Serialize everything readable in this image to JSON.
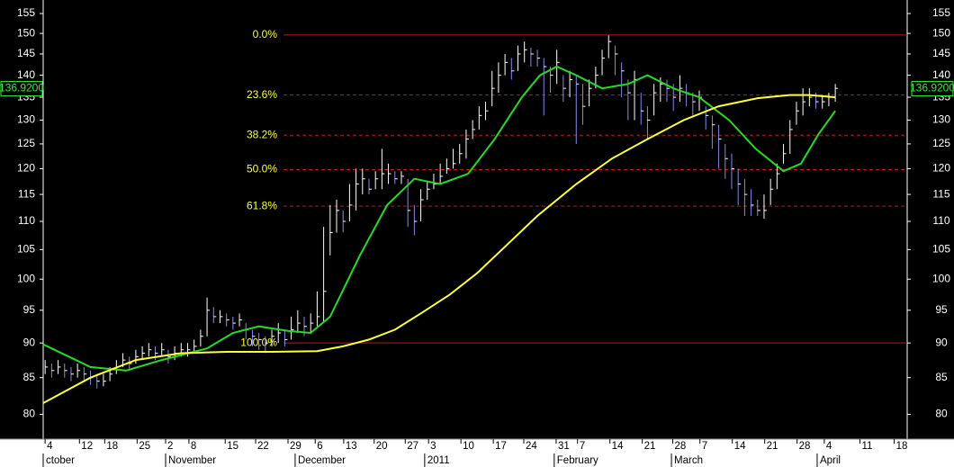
{
  "chart_data": {
    "type": "ohlc",
    "log_scale": true,
    "ylim": [
      76.8,
      158.5
    ],
    "yticks": [
      80,
      85,
      90,
      95,
      100,
      105,
      110,
      115,
      120,
      125,
      130,
      135,
      140,
      145,
      150,
      155
    ],
    "xlim": [
      -0.3,
      133.1
    ],
    "xticks": [
      {
        "value": 0,
        "label": "4"
      },
      {
        "value": 5.3,
        "label": "12"
      },
      {
        "value": 9.2,
        "label": "18"
      },
      {
        "value": 14.2,
        "label": "25"
      },
      {
        "value": 18.6,
        "label": "2"
      },
      {
        "value": 22.2,
        "label": "8"
      },
      {
        "value": 27.8,
        "label": "15"
      },
      {
        "value": 32.5,
        "label": "22"
      },
      {
        "value": 37.5,
        "label": "29"
      },
      {
        "value": 41.7,
        "label": "6"
      },
      {
        "value": 46.1,
        "label": "13"
      },
      {
        "value": 50.8,
        "label": "20"
      },
      {
        "value": 55.6,
        "label": "27"
      },
      {
        "value": 59.2,
        "label": "3"
      },
      {
        "value": 64.2,
        "label": "10"
      },
      {
        "value": 69.2,
        "label": "17"
      },
      {
        "value": 73.9,
        "label": "24"
      },
      {
        "value": 78.9,
        "label": "31"
      },
      {
        "value": 82.2,
        "label": "7"
      },
      {
        "value": 87.2,
        "label": "14"
      },
      {
        "value": 92.2,
        "label": "21"
      },
      {
        "value": 96.9,
        "label": "28"
      },
      {
        "value": 101.1,
        "label": "7"
      },
      {
        "value": 106.1,
        "label": "14"
      },
      {
        "value": 111.1,
        "label": "21"
      },
      {
        "value": 116.1,
        "label": "28"
      },
      {
        "value": 120.3,
        "label": "4"
      },
      {
        "value": 125.8,
        "label": "11"
      },
      {
        "value": 131.1,
        "label": "18"
      }
    ],
    "month_labels": [
      {
        "value": -0.3,
        "label": "ctober"
      },
      {
        "value": 18.6,
        "label": "November"
      },
      {
        "value": 38.6,
        "label": "December"
      },
      {
        "value": 58.6,
        "label": "2011"
      },
      {
        "value": 78.6,
        "label": "February"
      },
      {
        "value": 96.7,
        "label": "March"
      },
      {
        "value": 119.2,
        "label": "April"
      }
    ],
    "ohlc": {
      "color": "#ffffff",
      "high": [
        87.5,
        87,
        87.5,
        87,
        86.5,
        87,
        86.5,
        86,
        85.5,
        85.5,
        86.5,
        87.5,
        88.5,
        88,
        89,
        89.5,
        90,
        89.5,
        90,
        89,
        89.5,
        90,
        90,
        90.5,
        92,
        97,
        95.5,
        95,
        94.5,
        94,
        94.5,
        93,
        92,
        91.5,
        91,
        92,
        93,
        92,
        94,
        95,
        94,
        94.5,
        98,
        109,
        113,
        114,
        112,
        117,
        120,
        120,
        118,
        119.5,
        124,
        121,
        119.5,
        119.5,
        118,
        113,
        116,
        117.5,
        119,
        121,
        122,
        124,
        125,
        128,
        130,
        133,
        134,
        141,
        143,
        145,
        144,
        147,
        148,
        146.5,
        146,
        144,
        142,
        146,
        140,
        141,
        140,
        138,
        139,
        142,
        146,
        149.5,
        147,
        143,
        139,
        141,
        136,
        133,
        138,
        139.5,
        139,
        138,
        140,
        138,
        136,
        136.5,
        133,
        131,
        129,
        125,
        123,
        120,
        118,
        116,
        114,
        115,
        118,
        121,
        125,
        130,
        134,
        137,
        137,
        136,
        135.5,
        136,
        138
      ],
      "low": [
        85.5,
        85,
        85.5,
        85,
        84.5,
        85,
        84.5,
        84,
        83.5,
        83.8,
        84.5,
        85.5,
        86.5,
        86,
        87,
        87.5,
        88,
        87.5,
        88,
        87,
        87.5,
        88,
        88,
        88.5,
        89.5,
        91,
        93,
        93,
        92.5,
        92,
        92.5,
        90.5,
        89.5,
        89,
        88.5,
        89.5,
        90,
        89.5,
        90.5,
        91.5,
        91,
        91.5,
        92.5,
        93,
        104,
        108,
        108,
        110,
        112,
        115,
        115,
        116,
        116,
        117,
        117,
        117,
        109,
        107.5,
        110,
        114,
        116,
        117,
        119,
        120,
        121,
        122,
        126,
        128,
        130,
        133,
        136,
        140,
        139,
        141,
        143,
        142,
        142,
        131,
        136,
        138,
        134,
        135,
        125,
        129,
        133,
        137,
        140,
        144,
        140,
        135,
        130,
        130,
        129,
        126,
        131,
        134,
        134,
        132,
        134,
        133,
        131,
        132,
        128,
        124,
        120,
        118,
        116,
        113,
        111,
        111,
        111,
        110.5,
        113,
        116,
        121,
        123,
        129,
        131,
        133,
        132.5,
        132.5,
        133,
        134
      ],
      "close": [
        86.5,
        86,
        86.5,
        86,
        85.5,
        86,
        85.5,
        85,
        84.5,
        84.5,
        85.5,
        86.5,
        87.5,
        87,
        88,
        88.5,
        89,
        88.5,
        89,
        88,
        88.5,
        89,
        89,
        89.5,
        91,
        95,
        94,
        94,
        93.5,
        93,
        93.5,
        92,
        91,
        90.5,
        90,
        91,
        91.5,
        90.5,
        92,
        93,
        92.5,
        93,
        94,
        98,
        108,
        112,
        110,
        113,
        117,
        118,
        116,
        118,
        119,
        119,
        118,
        118.5,
        112,
        110,
        114,
        116,
        117,
        118.5,
        120,
        121,
        123,
        126,
        128,
        131,
        132,
        137,
        140,
        143,
        141,
        145,
        146,
        145,
        144,
        142,
        140,
        143,
        137,
        139,
        138,
        133,
        137,
        140,
        144,
        148,
        145,
        141,
        136,
        139,
        132,
        130,
        136,
        138,
        137,
        135,
        137,
        136,
        134,
        135,
        131,
        129,
        126,
        122,
        120,
        117,
        115,
        113,
        112,
        112,
        116,
        119,
        123,
        128,
        132,
        134,
        135,
        134,
        134,
        135,
        137
      ]
    },
    "lines": [
      {
        "color": "#22dd22",
        "x": [
          -0.3,
          7,
          12.5,
          18,
          25,
          29,
          33,
          37.5,
          41,
          44,
          48.6,
          52.8,
          57,
          61,
          65.3,
          69.4,
          73.6,
          76.4,
          79,
          82,
          86,
          90,
          93,
          97,
          101,
          105.6,
          109.7,
          114,
          116.7,
          119.4,
          122
        ],
        "values": [
          89.8,
          86.5,
          86,
          87.5,
          89.2,
          91.5,
          92.5,
          91.8,
          91.5,
          94,
          104,
          113,
          118,
          117,
          119,
          126,
          135,
          140,
          142,
          140,
          137,
          138,
          140,
          137,
          135,
          130,
          124,
          119.5,
          121,
          127,
          132
        ]
      },
      {
        "color": "#ffff33",
        "x": [
          -0.3,
          7,
          14,
          21,
          28,
          35,
          42,
          46,
          50,
          54,
          58,
          62.5,
          66.7,
          71,
          76,
          82,
          87.5,
          93,
          98.6,
          104,
          110,
          115,
          118,
          122
        ],
        "values": [
          81.5,
          85,
          87.5,
          88.5,
          88.7,
          88.7,
          88.8,
          89.5,
          90.5,
          92,
          94.5,
          97.5,
          101,
          105.5,
          111,
          117,
          122,
          126,
          130,
          133,
          134.8,
          135.5,
          135.5,
          135
        ]
      }
    ],
    "fib_color": "#cc1111",
    "fib_label_color": "#ffff33",
    "fib_levels": [
      {
        "value": 149.6,
        "label": "0.0%"
      },
      {
        "value": 135.5,
        "label": "23.6%"
      },
      {
        "value": 126.8,
        "label": "38.2%"
      },
      {
        "value": 119.8,
        "label": "50.0%"
      },
      {
        "value": 112.8,
        "label": "61.8%"
      },
      {
        "value": 90.0,
        "label": "100.0%"
      }
    ],
    "last_price": {
      "value": 136.92,
      "label": "136.9200",
      "color": "#33ee33"
    }
  }
}
